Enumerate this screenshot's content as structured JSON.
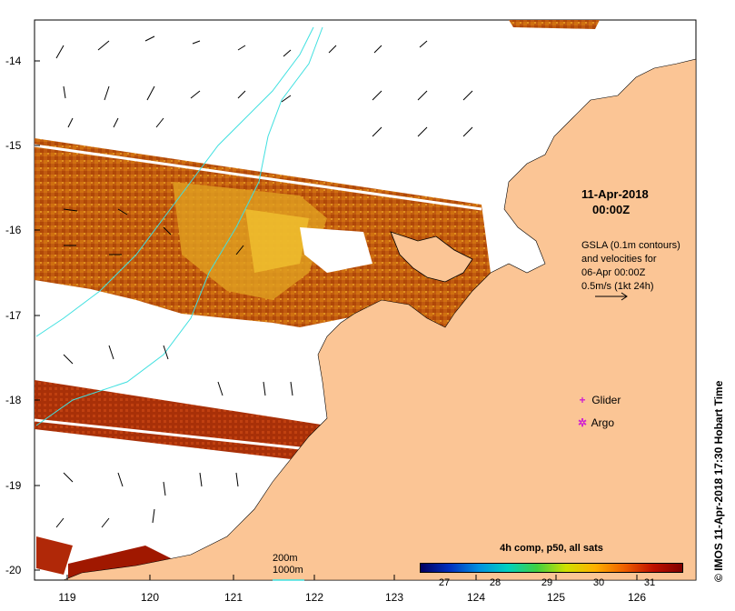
{
  "map": {
    "date_line1": "11-Apr-2018",
    "date_line2": "00:00Z",
    "gsla_lines": [
      "GSLA (0.1m contours)",
      "and velocities for",
      "06-Apr 00:00Z",
      "0.5m/s (1kt 24h)"
    ],
    "lat_ticks": [
      "-14",
      "-15",
      "-16",
      "-17",
      "-18",
      "-19",
      "-20"
    ],
    "lon_ticks": [
      "119",
      "120",
      "121",
      "122",
      "123",
      "124",
      "125",
      "126"
    ],
    "legend": {
      "glider": "Glider",
      "argo": "Argo",
      "glider_symbol": "+",
      "argo_symbol": "✲"
    },
    "depth_legend": [
      "200m",
      "1000m"
    ],
    "colorbar": {
      "title": "4h comp, p50, all sats",
      "ticks": [
        "27",
        "28",
        "29",
        "30",
        "31"
      ]
    },
    "credit": "© IMOS 11-Apr-2018 17:30 Hobart Time",
    "colors": {
      "land": "#fbc595",
      "contour": "#40e0e0",
      "sst_warm": "#c05000",
      "sst_hot": "#e8a000"
    }
  }
}
